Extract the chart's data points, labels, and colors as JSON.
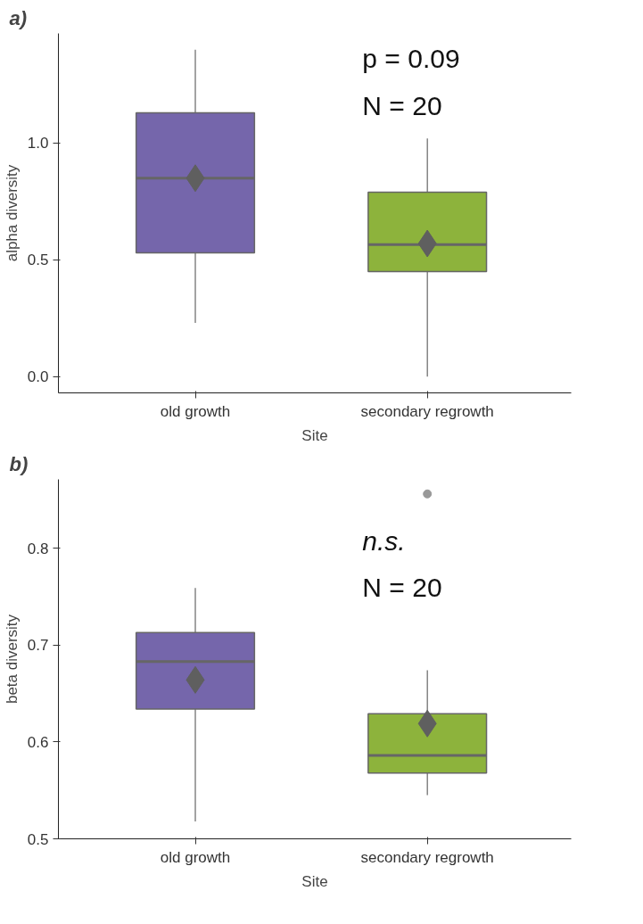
{
  "chart_data": [
    {
      "type": "box",
      "title": "a)",
      "xlabel": "Site",
      "ylabel": "alpha diversity",
      "categories": [
        "old growth",
        "secondary regrowth"
      ],
      "colors": [
        "#7566ab",
        "#8db33c"
      ],
      "boxes": [
        {
          "low": 0.23,
          "q1": 0.53,
          "median": 0.85,
          "q3": 1.13,
          "high": 1.4,
          "mean": 0.85
        },
        {
          "low": 0.0,
          "q1": 0.45,
          "median": 0.565,
          "q3": 0.79,
          "high": 1.02,
          "mean": 0.57
        }
      ],
      "ylim": [
        -0.07,
        1.47
      ],
      "yticks": [
        {
          "value": 0,
          "label": "0.0"
        },
        0.5,
        {
          "value": 1,
          "label": "1.0"
        }
      ],
      "grid": false,
      "annotations": [
        "p = 0.09",
        "N = 20"
      ]
    },
    {
      "type": "box",
      "title": "b)",
      "xlabel": "Site",
      "ylabel": "beta diversity",
      "categories": [
        "old growth",
        "secondary regrowth"
      ],
      "colors": [
        "#7566ab",
        "#8db33c"
      ],
      "boxes": [
        {
          "low": 0.518,
          "q1": 0.634,
          "median": 0.683,
          "q3": 0.713,
          "high": 0.759,
          "mean": 0.664
        },
        {
          "low": 0.545,
          "q1": 0.568,
          "median": 0.586,
          "q3": 0.629,
          "high": 0.674,
          "mean": 0.619,
          "outliers": [
            0.856
          ]
        }
      ],
      "ylim": [
        0.5,
        0.871
      ],
      "yticks": [
        0.5,
        0.6,
        0.7,
        0.8
      ],
      "grid": false,
      "annotations": [
        "n.s.",
        "N = 20"
      ]
    }
  ]
}
